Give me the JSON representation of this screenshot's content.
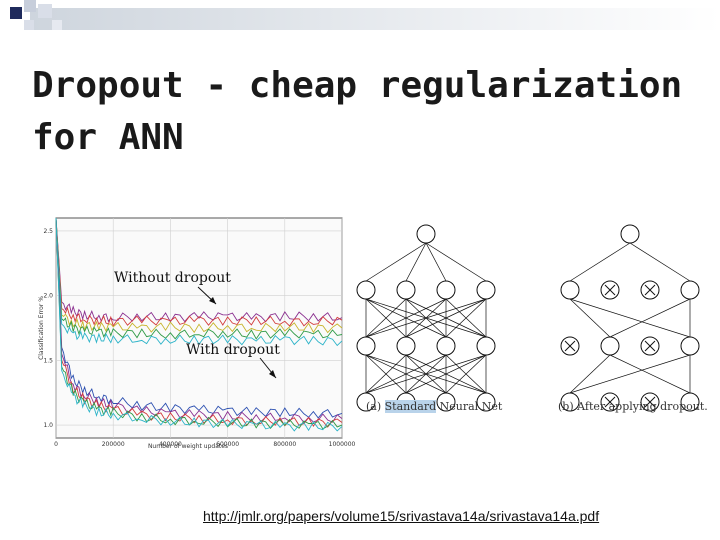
{
  "slide": {
    "title_line1": "Dropout - cheap regularization",
    "title_line2": "for ANN",
    "link": "http://jmlr.org/papers/volume15/srivastava14a/srivastava14a.pdf"
  },
  "chart_data": {
    "type": "line",
    "xlabel": "Number of weight updates",
    "ylabel": "Classification Error %",
    "xlim": [
      0,
      1000000
    ],
    "ylim": [
      0.9,
      2.6
    ],
    "xticks": [
      "0",
      "200000",
      "400000",
      "600000",
      "800000",
      "1000000"
    ],
    "yticks": [
      "1.0",
      "1.5",
      "2.0",
      "2.5"
    ],
    "grid": true,
    "annotations": [
      "Without dropout",
      "With dropout"
    ],
    "series": [
      {
        "group": "Without dropout",
        "color": "#8a2f8f",
        "x": [
          0,
          20000,
          60000,
          100000,
          150000,
          200000,
          300000,
          400000,
          500000,
          600000,
          700000,
          800000,
          900000,
          1000000
        ],
        "values": [
          2.6,
          1.95,
          1.88,
          1.85,
          1.84,
          1.83,
          1.84,
          1.83,
          1.84,
          1.84,
          1.83,
          1.84,
          1.84,
          1.83
        ]
      },
      {
        "group": "Without dropout",
        "color": "#d23b3b",
        "x": [
          0,
          20000,
          60000,
          100000,
          150000,
          200000,
          300000,
          400000,
          500000,
          600000,
          700000,
          800000,
          900000,
          1000000
        ],
        "values": [
          2.6,
          1.9,
          1.84,
          1.82,
          1.81,
          1.8,
          1.81,
          1.8,
          1.81,
          1.8,
          1.81,
          1.8,
          1.8,
          1.81
        ]
      },
      {
        "group": "Without dropout",
        "color": "#c7b42c",
        "x": [
          0,
          20000,
          60000,
          100000,
          150000,
          200000,
          300000,
          400000,
          500000,
          600000,
          700000,
          800000,
          900000,
          1000000
        ],
        "values": [
          2.6,
          1.85,
          1.79,
          1.77,
          1.76,
          1.76,
          1.75,
          1.76,
          1.75,
          1.76,
          1.75,
          1.76,
          1.75,
          1.75
        ]
      },
      {
        "group": "Without dropout",
        "color": "#2e9a45",
        "x": [
          0,
          20000,
          60000,
          100000,
          150000,
          200000,
          300000,
          400000,
          500000,
          600000,
          700000,
          800000,
          900000,
          1000000
        ],
        "values": [
          2.6,
          1.82,
          1.75,
          1.73,
          1.72,
          1.71,
          1.71,
          1.7,
          1.71,
          1.71,
          1.7,
          1.71,
          1.7,
          1.7
        ]
      },
      {
        "group": "Without dropout",
        "color": "#2bb3c8",
        "x": [
          0,
          20000,
          60000,
          100000,
          150000,
          200000,
          300000,
          400000,
          500000,
          600000,
          700000,
          800000,
          900000,
          1000000
        ],
        "values": [
          2.6,
          1.78,
          1.7,
          1.68,
          1.67,
          1.67,
          1.66,
          1.66,
          1.66,
          1.66,
          1.65,
          1.66,
          1.65,
          1.65
        ]
      },
      {
        "group": "With dropout",
        "color": "#2b4fb0",
        "x": [
          0,
          20000,
          60000,
          100000,
          150000,
          200000,
          300000,
          400000,
          500000,
          600000,
          700000,
          800000,
          900000,
          1000000
        ],
        "values": [
          2.6,
          1.6,
          1.35,
          1.27,
          1.22,
          1.19,
          1.15,
          1.13,
          1.12,
          1.11,
          1.1,
          1.1,
          1.09,
          1.09
        ]
      },
      {
        "group": "With dropout",
        "color": "#8a2f8f",
        "x": [
          0,
          20000,
          60000,
          100000,
          150000,
          200000,
          300000,
          400000,
          500000,
          600000,
          700000,
          800000,
          900000,
          1000000
        ],
        "values": [
          2.6,
          1.55,
          1.31,
          1.23,
          1.18,
          1.15,
          1.11,
          1.09,
          1.08,
          1.07,
          1.06,
          1.06,
          1.05,
          1.05
        ]
      },
      {
        "group": "With dropout",
        "color": "#d23b3b",
        "x": [
          0,
          20000,
          60000,
          100000,
          150000,
          200000,
          300000,
          400000,
          500000,
          600000,
          700000,
          800000,
          900000,
          1000000
        ],
        "values": [
          2.6,
          1.5,
          1.28,
          1.2,
          1.15,
          1.12,
          1.08,
          1.06,
          1.05,
          1.04,
          1.03,
          1.03,
          1.02,
          1.02
        ]
      },
      {
        "group": "With dropout",
        "color": "#2e9a45",
        "x": [
          0,
          20000,
          60000,
          100000,
          150000,
          200000,
          300000,
          400000,
          500000,
          600000,
          700000,
          800000,
          900000,
          1000000
        ],
        "values": [
          2.6,
          1.45,
          1.25,
          1.17,
          1.12,
          1.1,
          1.06,
          1.04,
          1.03,
          1.02,
          1.01,
          1.01,
          1.0,
          1.0
        ]
      },
      {
        "group": "With dropout",
        "color": "#2bb3c8",
        "x": [
          0,
          20000,
          60000,
          100000,
          150000,
          200000,
          300000,
          400000,
          500000,
          600000,
          700000,
          800000,
          900000,
          1000000
        ],
        "values": [
          2.6,
          1.42,
          1.22,
          1.15,
          1.1,
          1.08,
          1.05,
          1.03,
          1.02,
          1.01,
          1.0,
          0.99,
          0.99,
          0.99
        ]
      }
    ]
  },
  "network": {
    "caption_a_prefix": "(a) ",
    "caption_a_highlight": "Standard",
    "caption_a_suffix": " Neural Net",
    "caption_b": "(b) After applying dropout."
  }
}
